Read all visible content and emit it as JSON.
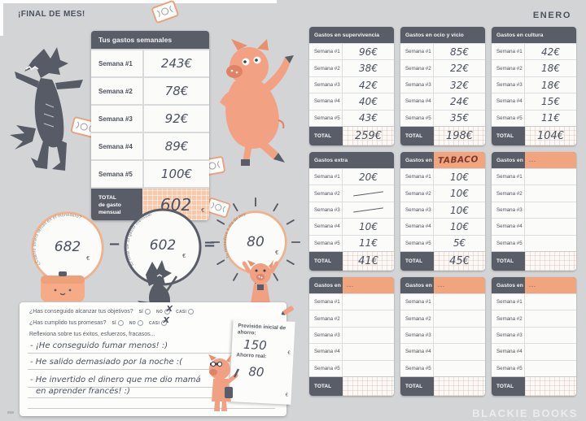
{
  "page": {
    "left_header": "¡FINAL DE MES!",
    "right_header": "ENERO",
    "watermark": "BLACKIE BOOKS"
  },
  "colors": {
    "background": "#d2d4d6",
    "dark_slate": "#585d68",
    "peach": "#f1a57e",
    "peach_light": "#f8c8a8",
    "ink": "#4b5160",
    "tabaco_ink": "#7d3b2f"
  },
  "weekly_table": {
    "title": "Tus gastos semanales",
    "row_labels": [
      "Semana #1",
      "Semana #2",
      "Semana #3",
      "Semana #4",
      "Semana #5"
    ],
    "values": [
      "243€",
      "78€",
      "92€",
      "89€",
      "100€"
    ],
    "total_label": "TOTAL",
    "total_sublabel": "de gasto mensual",
    "total_value": "602",
    "currency_symbol": "€"
  },
  "equation": {
    "operator_minus": "−",
    "operator_equals": "=",
    "circles": [
      {
        "label": "¿Cuánto dinero tenías en el monedero?",
        "value": "682",
        "currency": "€"
      },
      {
        "label": "El total de tu gasto mensual",
        "value": "602",
        "currency": "€"
      },
      {
        "label": "Tu monedero a día de hoy",
        "value": "80",
        "currency": "€"
      }
    ]
  },
  "questionnaire": {
    "question1": "¿Has conseguido alcanzar tus objetivos?",
    "question2": "¿Has cumplido tus promesas?",
    "option_si": "SÍ",
    "option_no": "NO",
    "option_casi": "CASI",
    "mark": "X",
    "question1_marked": "no",
    "question2_marked": "casi",
    "prompt": "Reflexiona sobre tus éxitos, esfuerzos, fracasos...",
    "reflection_lines": [
      "- ¡He conseguido fumar menos! :)",
      "- He salido demasiado por la noche :(",
      "- He invertido el dinero que me dio mamá",
      "en aprender francés! :)"
    ]
  },
  "savings_note": {
    "forecast_label": "Previsión inicial de ahorro:",
    "forecast_value": "150",
    "real_label": "Ahorro real:",
    "real_value": "80",
    "currency": "€"
  },
  "expense_tables": {
    "row_labels": [
      "Semana #1",
      "Semana #2",
      "Semana #3",
      "Semana #4",
      "Semana #5"
    ],
    "total_label": "TOTAL",
    "fill_in_prefix": "Gastos en",
    "fill_in_placeholder": "...",
    "tables": [
      {
        "type": "titled",
        "title": "Gastos en supervivencia",
        "values": [
          "96€",
          "38€",
          "42€",
          "40€",
          "43€"
        ],
        "total": "259€"
      },
      {
        "type": "titled",
        "title": "Gastos en ocio y vicio",
        "values": [
          "85€",
          "22€",
          "32€",
          "24€",
          "35€"
        ],
        "total": "198€"
      },
      {
        "type": "titled",
        "title": "Gastos en cultura",
        "values": [
          "42€",
          "18€",
          "18€",
          "15€",
          "11€"
        ],
        "total": "104€"
      },
      {
        "type": "titled",
        "title": "Gastos extra",
        "values": [
          "20€",
          "/",
          "/",
          "10€",
          "11€"
        ],
        "total": "41€"
      },
      {
        "type": "fill-in",
        "handwritten_title": "TABACO",
        "values": [
          "10€",
          "10€",
          "10€",
          "10€",
          "5€"
        ],
        "total": "45€"
      },
      {
        "type": "fill-in",
        "values": [
          "",
          "",
          "",
          "",
          ""
        ],
        "total": ""
      },
      {
        "type": "fill-in",
        "values": [
          "",
          "",
          "",
          "",
          ""
        ],
        "total": ""
      },
      {
        "type": "fill-in",
        "values": [
          "",
          "",
          "",
          "",
          ""
        ],
        "total": ""
      },
      {
        "type": "fill-in",
        "values": [
          "",
          "",
          "",
          "",
          ""
        ],
        "total": ""
      }
    ]
  }
}
